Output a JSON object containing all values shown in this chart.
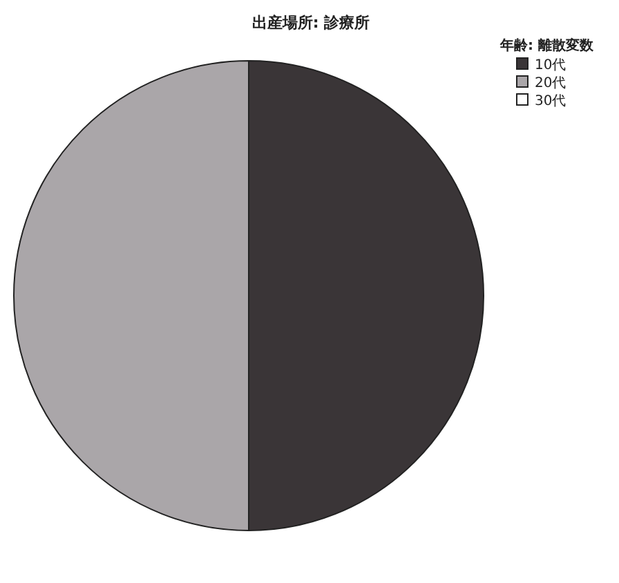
{
  "chart_data": {
    "type": "pie",
    "title": "出産場所: 診療所",
    "legend_title": "年齢: 離散変数",
    "legend": "top right",
    "categories": [
      "10代",
      "20代",
      "30代"
    ],
    "values": [
      50,
      50,
      0
    ],
    "colors": [
      "#3a3537",
      "#aaa6a9",
      "#ffffff"
    ]
  }
}
